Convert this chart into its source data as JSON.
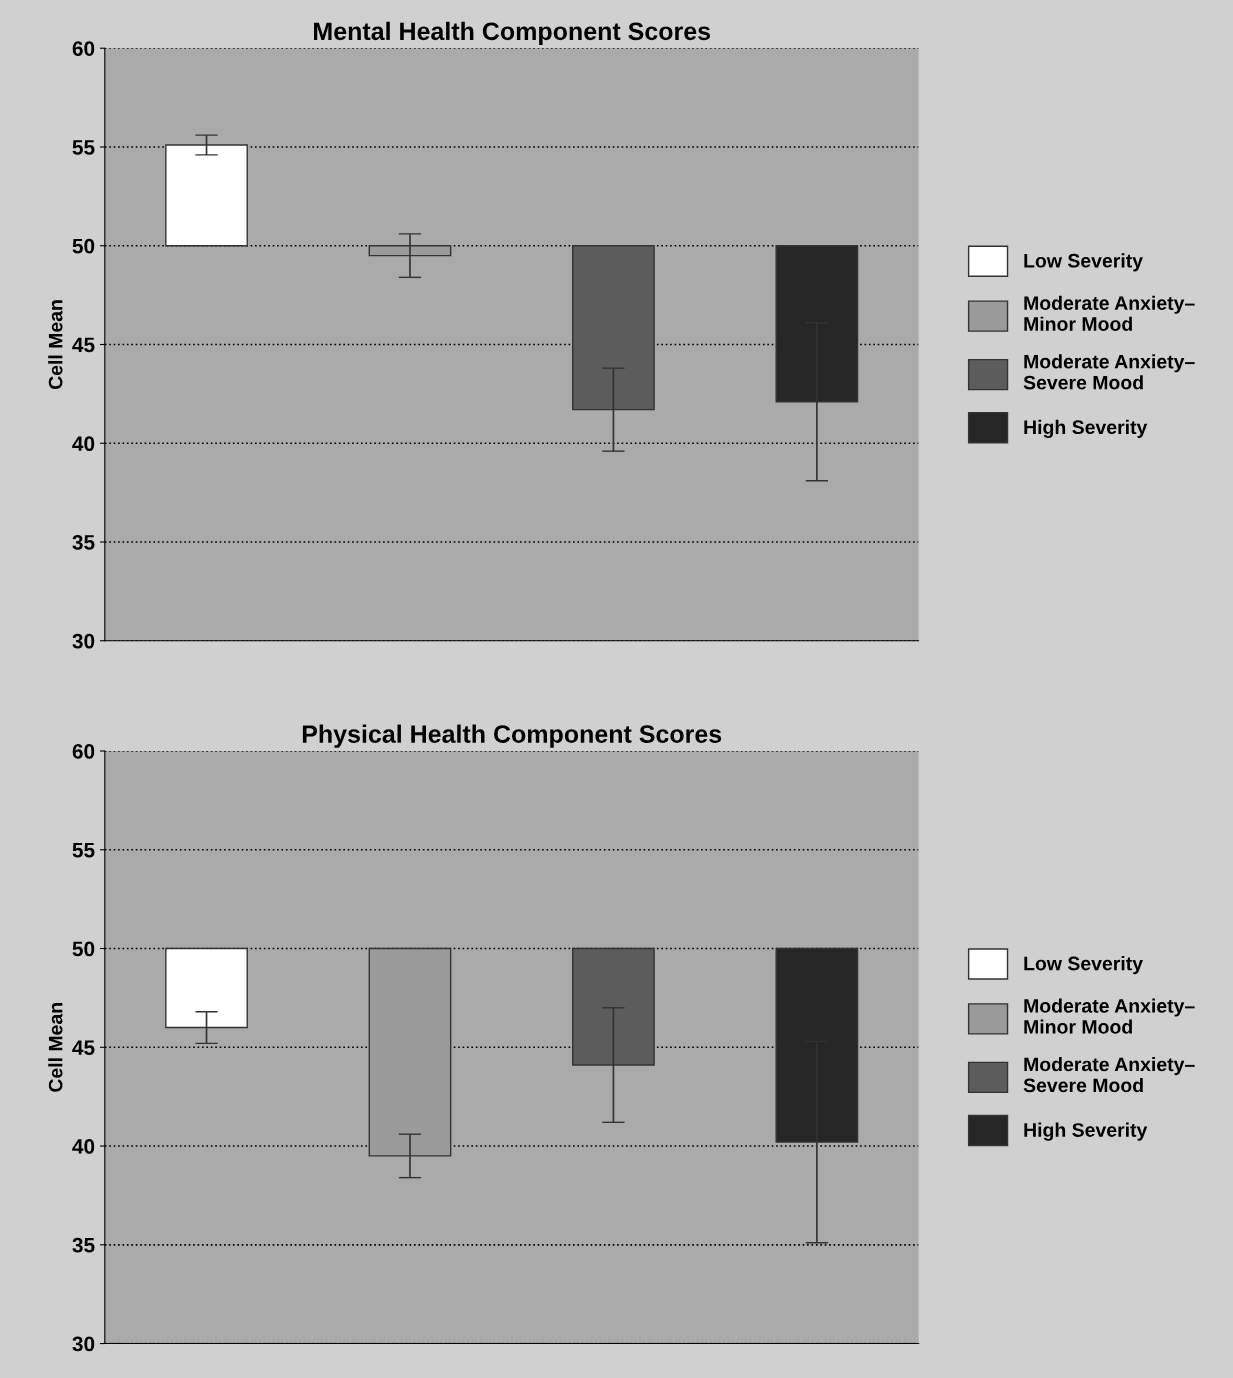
{
  "chart_data": [
    {
      "type": "bar",
      "title": "Mental Health Component Scores",
      "ylabel": "Cell Mean",
      "categories": [
        null,
        null,
        null,
        null
      ],
      "ylim": [
        30,
        60
      ],
      "yticks": [
        30,
        35,
        40,
        45,
        50,
        55,
        60
      ],
      "grid": "y",
      "legend": "right",
      "series": [
        {
          "name": "Low Severity",
          "color": "#ffffff",
          "base": [
            50,
            null,
            null,
            null
          ],
          "values": [
            5.1,
            null,
            null,
            null
          ],
          "errors": [
            0.5,
            null,
            null,
            null
          ]
        },
        {
          "name": "Moderate Anxiety–\nMinor Mood",
          "color": "#9a9a9a",
          "base": [
            null,
            50,
            null,
            null
          ],
          "values": [
            null,
            -0.5,
            null,
            null
          ],
          "errors": [
            null,
            1.1,
            null,
            null
          ]
        },
        {
          "name": "Moderate Anxiety–\nSevere Mood",
          "color": "#5c5c5c",
          "base": [
            null,
            null,
            50,
            null
          ],
          "values": [
            null,
            null,
            -8.3,
            null
          ],
          "errors": [
            null,
            null,
            2.1,
            null
          ]
        },
        {
          "name": "High Severity",
          "color": "#262626",
          "base": [
            null,
            null,
            null,
            50
          ],
          "values": [
            null,
            null,
            null,
            -7.9
          ],
          "errors": [
            null,
            null,
            null,
            4.0
          ]
        }
      ]
    },
    {
      "type": "bar",
      "title": "Physical Health Component Scores",
      "ylabel": "Cell Mean",
      "categories": [
        null,
        null,
        null,
        null
      ],
      "ylim": [
        30,
        60
      ],
      "yticks": [
        30,
        35,
        40,
        45,
        50,
        55,
        60
      ],
      "grid": "y",
      "legend": "right",
      "series": [
        {
          "name": "Low Severity",
          "color": "#ffffff",
          "base": [
            50,
            null,
            null,
            null
          ],
          "values": [
            -4.0,
            null,
            null,
            null
          ],
          "errors": [
            0.8,
            null,
            null,
            null
          ]
        },
        {
          "name": "Moderate Anxiety–\nMinor Mood",
          "color": "#9a9a9a",
          "base": [
            null,
            50,
            null,
            null
          ],
          "values": [
            null,
            -10.5,
            null,
            null
          ],
          "errors": [
            null,
            1.1,
            null,
            null
          ]
        },
        {
          "name": "Moderate Anxiety–\nSevere Mood",
          "color": "#5c5c5c",
          "base": [
            null,
            null,
            50,
            null
          ],
          "values": [
            null,
            null,
            -5.9,
            null
          ],
          "errors": [
            null,
            null,
            2.9,
            null
          ]
        },
        {
          "name": "High Severity",
          "color": "#262626",
          "base": [
            null,
            null,
            null,
            50
          ],
          "values": [
            null,
            null,
            null,
            -9.8
          ],
          "errors": [
            null,
            null,
            null,
            5.1
          ]
        }
      ]
    }
  ]
}
